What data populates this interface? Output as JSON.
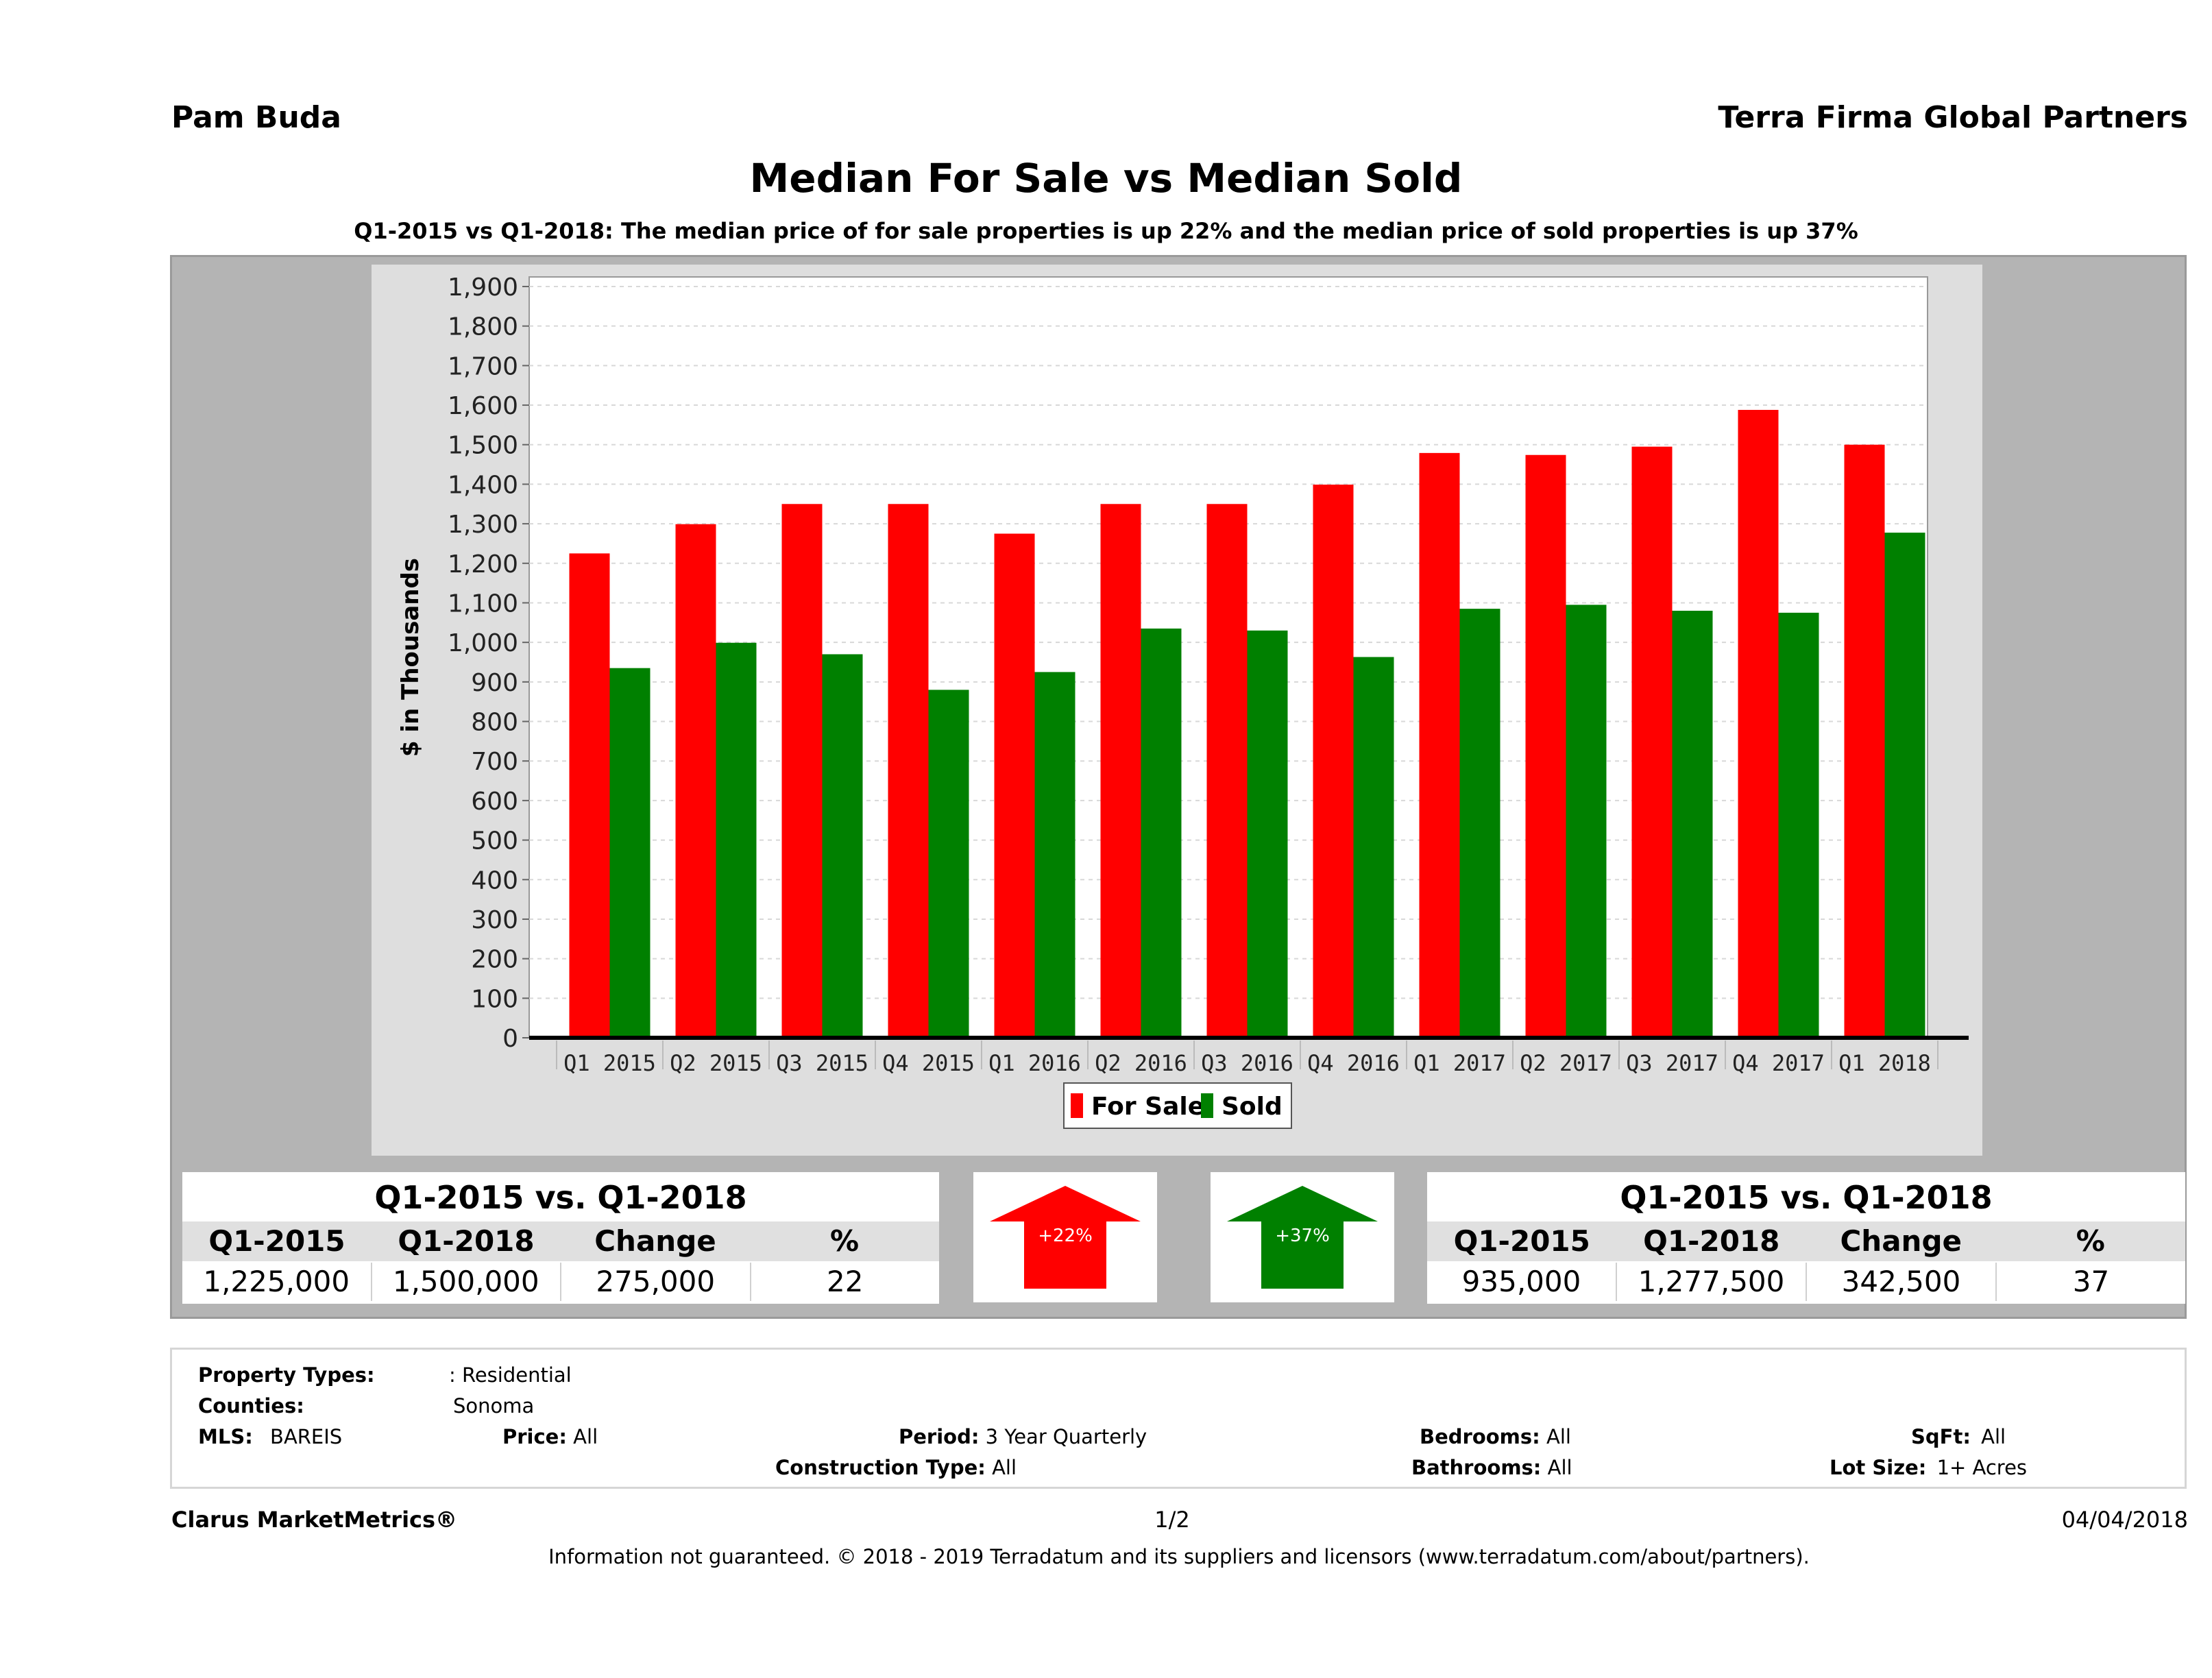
{
  "header": {
    "agent": "Pam Buda",
    "company": "Terra Firma Global Partners",
    "title": "Median For Sale vs Median Sold",
    "subtitle": "Q1-2015 vs Q1-2018: The median price of for sale properties is up 22% and the median price of sold properties is up 37%"
  },
  "chart_data": {
    "type": "bar",
    "ylabel": "$ in Thousands",
    "xlabel": "",
    "ylim": [
      0,
      1900
    ],
    "ytick_step": 100,
    "grid": true,
    "legend_position": "bottom",
    "categories": [
      "Q1 2015",
      "Q2 2015",
      "Q3 2015",
      "Q4 2015",
      "Q1 2016",
      "Q2 2016",
      "Q3 2016",
      "Q4 2016",
      "Q1 2017",
      "Q2 2017",
      "Q3 2017",
      "Q4 2017",
      "Q1 2018"
    ],
    "series": [
      {
        "name": "For Sale",
        "color": "#ff0000",
        "values": [
          1225,
          1299,
          1350,
          1350,
          1275,
          1350,
          1350,
          1399,
          1479,
          1474,
          1495,
          1588,
          1500
        ]
      },
      {
        "name": "Sold",
        "color": "#008000",
        "values": [
          935,
          999,
          970,
          880,
          925,
          1035,
          1030,
          963,
          1085,
          1095,
          1080,
          1075,
          1277.5
        ]
      }
    ]
  },
  "stats": {
    "for_sale": {
      "title": "Q1-2015 vs. Q1-2018",
      "headers": [
        "Q1-2015",
        "Q1-2018",
        "Change",
        "%"
      ],
      "values": [
        "1,225,000",
        "1,500,000",
        "275,000",
        "22"
      ],
      "arrow_label": "+22%",
      "arrow_color": "#ff0000"
    },
    "sold": {
      "title": "Q1-2015 vs. Q1-2018",
      "headers": [
        "Q1-2015",
        "Q1-2018",
        "Change",
        "%"
      ],
      "values": [
        "935,000",
        "1,277,500",
        "342,500",
        "37"
      ],
      "arrow_label": "+37%",
      "arrow_color": "#008000"
    }
  },
  "info": {
    "property_types_label": "Property Types:",
    "property_types_value": ": Residential",
    "counties_label": "Counties:",
    "counties_value": "Sonoma",
    "mls_label": "MLS:",
    "mls_value": "BAREIS",
    "price_label": "Price:",
    "price_value": "All",
    "period_label": "Period:",
    "period_value": "3 Year Quarterly",
    "construction_label": "Construction Type:",
    "construction_value": "All",
    "bedrooms_label": "Bedrooms:",
    "bedrooms_value": "All",
    "bathrooms_label": "Bathrooms:",
    "bathrooms_value": "All",
    "sqft_label": "SqFt:",
    "sqft_value": "All",
    "lotsize_label": "Lot Size:",
    "lotsize_value": "1+ Acres"
  },
  "footer": {
    "brand": "Clarus MarketMetrics®",
    "page": "1/2",
    "date": "04/04/2018",
    "disclaimer": "Information not guaranteed. © 2018 - 2019 Terradatum and its suppliers and licensors (www.terradatum.com/about/partners)."
  }
}
